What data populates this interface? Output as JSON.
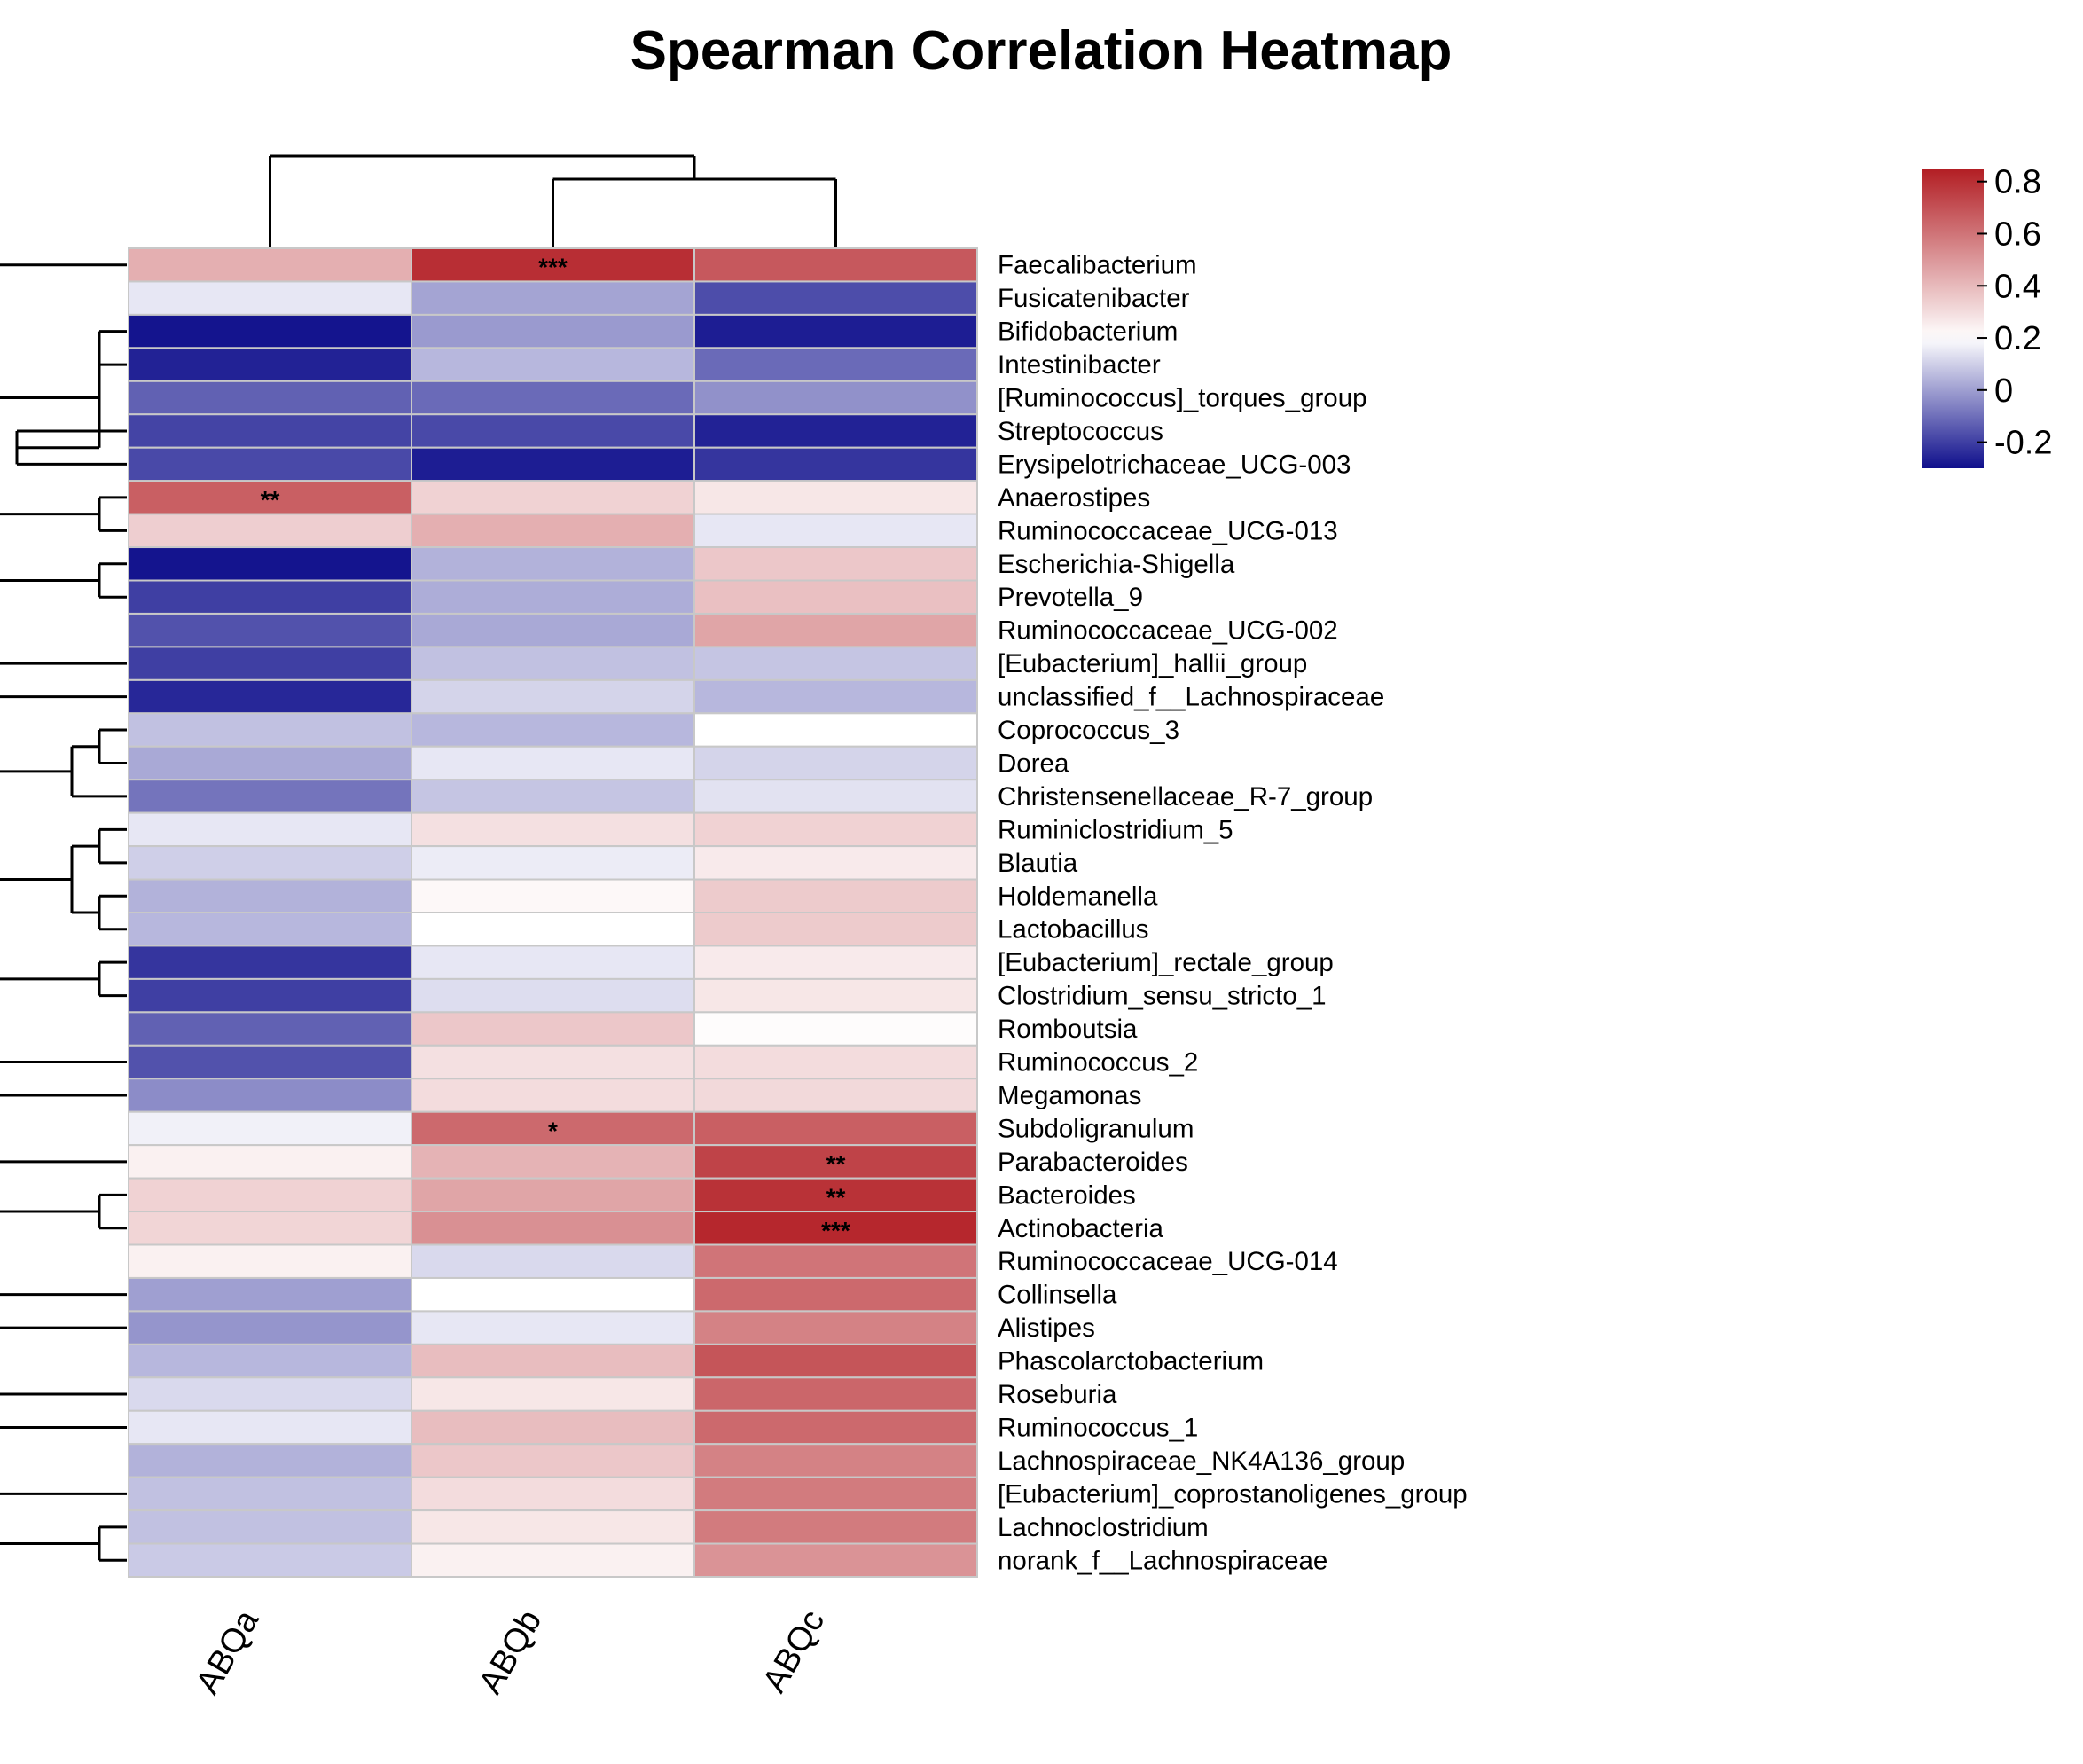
{
  "chart_data": {
    "type": "heatmap",
    "title": "Spearman Correlation Heatmap",
    "columns": [
      "ABQa",
      "ABQb",
      "ABQc"
    ],
    "rows": [
      "Faecalibacterium",
      "Fusicatenibacter",
      "Bifidobacterium",
      "Intestinibacter",
      "[Ruminococcus]_torques_group",
      "Streptococcus",
      "Erysipelotrichaceae_UCG-003",
      "Anaerostipes",
      "Ruminococcaceae_UCG-013",
      "Escherichia-Shigella",
      "Prevotella_9",
      "Ruminococcaceae_UCG-002",
      "[Eubacterium]_hallii_group",
      "unclassified_f__Lachnospiraceae",
      "Coprococcus_3",
      "Dorea",
      "Christensenellaceae_R-7_group",
      "Ruminiclostridium_5",
      "Blautia",
      "Holdemanella",
      "Lactobacillus",
      "[Eubacterium]_rectale_group",
      "Clostridium_sensu_stricto_1",
      "Romboutsia",
      "Ruminococcus_2",
      "Megamonas",
      "Subdoligranulum",
      "Parabacteroides",
      "Bacteroides",
      "Actinobacteria",
      "Ruminococcaceae_UCG-014",
      "Collinsella",
      "Alistipes",
      "Phascolarctobacterium",
      "Roseburia",
      "Ruminococcus_1",
      "Lachnospiraceae_NK4A136_group",
      "[Eubacterium]_coprostanoligenes_group",
      "Lachnoclostridium",
      "norank_f__Lachnospiraceae"
    ],
    "values": [
      [
        0.43,
        0.8,
        0.68
      ],
      [
        0.15,
        0.01,
        -0.17
      ],
      [
        -0.29,
        -0.01,
        -0.27
      ],
      [
        -0.26,
        0.05,
        -0.11
      ],
      [
        -0.13,
        -0.11,
        -0.03
      ],
      [
        -0.19,
        -0.18,
        -0.26
      ],
      [
        -0.18,
        -0.27,
        -0.22
      ],
      [
        0.66,
        0.33,
        0.27
      ],
      [
        0.34,
        0.43,
        0.15
      ],
      [
        -0.29,
        0.04,
        0.36
      ],
      [
        -0.2,
        0.03,
        0.38
      ],
      [
        -0.16,
        0.02,
        0.46
      ],
      [
        -0.2,
        0.07,
        0.08
      ],
      [
        -0.25,
        0.11,
        0.05
      ],
      [
        0.07,
        0.05,
        0.2
      ],
      [
        0.02,
        0.15,
        0.11
      ],
      [
        -0.09,
        0.08,
        0.14
      ],
      [
        0.15,
        0.29,
        0.33
      ],
      [
        0.1,
        0.16,
        0.26
      ],
      [
        0.04,
        0.22,
        0.35
      ],
      [
        0.05,
        0.2,
        0.35
      ],
      [
        -0.22,
        0.15,
        0.26
      ],
      [
        -0.2,
        0.13,
        0.27
      ],
      [
        -0.13,
        0.36,
        0.21
      ],
      [
        -0.16,
        0.29,
        0.3
      ],
      [
        -0.04,
        0.3,
        0.31
      ],
      [
        0.17,
        0.63,
        0.66
      ],
      [
        0.24,
        0.42,
        0.74
      ],
      [
        0.33,
        0.46,
        0.79
      ],
      [
        0.32,
        0.52,
        0.82
      ],
      [
        0.24,
        0.12,
        0.6
      ],
      [
        0.0,
        0.2,
        0.63
      ],
      [
        -0.02,
        0.15,
        0.56
      ],
      [
        0.05,
        0.39,
        0.69
      ],
      [
        0.12,
        0.27,
        0.64
      ],
      [
        0.15,
        0.39,
        0.63
      ],
      [
        0.04,
        0.36,
        0.56
      ],
      [
        0.07,
        0.3,
        0.58
      ],
      [
        0.07,
        0.27,
        0.58
      ],
      [
        0.09,
        0.24,
        0.51
      ]
    ],
    "significance": [
      [
        "",
        "***",
        ""
      ],
      [
        "",
        "",
        ""
      ],
      [
        "",
        "",
        ""
      ],
      [
        "",
        "",
        ""
      ],
      [
        "",
        "",
        ""
      ],
      [
        "",
        "",
        ""
      ],
      [
        "",
        "",
        ""
      ],
      [
        "**",
        "",
        ""
      ],
      [
        "",
        "",
        ""
      ],
      [
        "",
        "",
        ""
      ],
      [
        "",
        "",
        ""
      ],
      [
        "",
        "",
        ""
      ],
      [
        "",
        "",
        ""
      ],
      [
        "",
        "",
        ""
      ],
      [
        "",
        "",
        ""
      ],
      [
        "",
        "",
        ""
      ],
      [
        "",
        "",
        ""
      ],
      [
        "",
        "",
        ""
      ],
      [
        "",
        "",
        ""
      ],
      [
        "",
        "",
        ""
      ],
      [
        "",
        "",
        ""
      ],
      [
        "",
        "",
        ""
      ],
      [
        "",
        "",
        ""
      ],
      [
        "",
        "",
        ""
      ],
      [
        "",
        "",
        ""
      ],
      [
        "",
        "",
        ""
      ],
      [
        "",
        "*",
        ""
      ],
      [
        "",
        "",
        "**"
      ],
      [
        "",
        "",
        "**"
      ],
      [
        "",
        "",
        "***"
      ],
      [
        "",
        "",
        ""
      ],
      [
        "",
        "",
        ""
      ],
      [
        "",
        "",
        ""
      ],
      [
        "",
        "",
        ""
      ],
      [
        "",
        "",
        ""
      ],
      [
        "",
        "",
        ""
      ],
      [
        "",
        "",
        ""
      ],
      [
        "",
        "",
        ""
      ],
      [
        "",
        "",
        ""
      ],
      [
        "",
        "",
        ""
      ]
    ],
    "colorbar": {
      "range": [
        -0.3,
        0.85
      ],
      "ticks": [
        0.8,
        0.6,
        0.4,
        0.2,
        0,
        -0.2
      ],
      "tick_labels": [
        "0.8",
        "0.6",
        "0.4",
        "0.2",
        "0",
        "-0.2"
      ],
      "colors": {
        "low": "#0f0f8c",
        "mid": "#ffffff",
        "high": "#b21d23"
      },
      "mid_value": 0.2
    },
    "column_dendrogram": "((ABQb,ABQc),ABQa)",
    "legend_position": "top-right"
  }
}
